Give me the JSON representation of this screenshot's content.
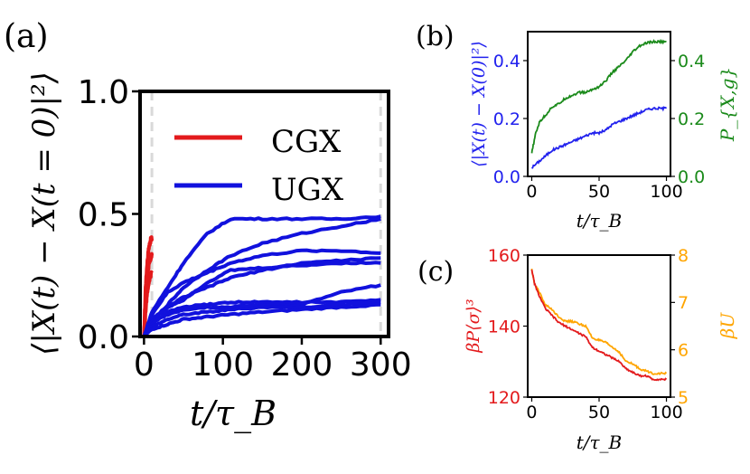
{
  "figure": {
    "panel_labels": {
      "a": "(a)",
      "b": "(b)",
      "c": "(c)"
    }
  },
  "colors": {
    "cgx": "#e31a1c",
    "ugx": "#1111dd",
    "b_left": "#2222ee",
    "b_right": "#1a8a1a",
    "c_left": "#e31a1c",
    "c_right": "#ffa500",
    "vline": "#d9d9d9"
  },
  "chart_data": [
    {
      "id": "a",
      "type": "line",
      "xlabel": "t/τ_B",
      "ylabel": "⟨|X(t) − X(t = 0)|²⟩",
      "xlim": [
        -5,
        310
      ],
      "ylim": [
        0,
        1.0
      ],
      "xticks": [
        0,
        100,
        200,
        300
      ],
      "xtick_labels": [
        "0",
        "100",
        "200",
        "300"
      ],
      "yticks": [
        0.0,
        0.5,
        1.0
      ],
      "ytick_labels": [
        "0.0",
        "0.5",
        "1.0"
      ],
      "vlines": [
        10,
        300
      ],
      "legend": {
        "position": "upper-left",
        "entries": [
          {
            "name": "CGX",
            "color": "#e31a1c"
          },
          {
            "name": "UGX",
            "color": "#1111dd"
          }
        ]
      },
      "series": [
        {
          "name": "CGX",
          "group": "CGX",
          "x": [
            0,
            2,
            4,
            6,
            8,
            10
          ],
          "y": [
            0.0,
            0.2,
            0.3,
            0.36,
            0.39,
            0.4
          ]
        },
        {
          "name": "CGX",
          "group": "CGX",
          "x": [
            0,
            2,
            4,
            6,
            8,
            10
          ],
          "y": [
            0.0,
            0.15,
            0.24,
            0.29,
            0.32,
            0.33
          ]
        },
        {
          "name": "CGX",
          "group": "CGX",
          "x": [
            0,
            2,
            4,
            6,
            8,
            10
          ],
          "y": [
            0.0,
            0.1,
            0.18,
            0.22,
            0.25,
            0.26
          ]
        },
        {
          "name": "UGX",
          "group": "UGX",
          "x": [
            0,
            10,
            30,
            50,
            80,
            110,
            150,
            200,
            250,
            300
          ],
          "y": [
            0.0,
            0.1,
            0.2,
            0.3,
            0.42,
            0.48,
            0.48,
            0.48,
            0.48,
            0.49
          ]
        },
        {
          "name": "UGX",
          "group": "UGX",
          "x": [
            0,
            10,
            30,
            50,
            80,
            110,
            150,
            200,
            250,
            300
          ],
          "y": [
            0.0,
            0.06,
            0.13,
            0.2,
            0.27,
            0.33,
            0.38,
            0.42,
            0.45,
            0.48
          ]
        },
        {
          "name": "UGX",
          "group": "UGX",
          "x": [
            0,
            10,
            30,
            50,
            80,
            110,
            150,
            200,
            250,
            300
          ],
          "y": [
            0.0,
            0.09,
            0.18,
            0.22,
            0.26,
            0.3,
            0.33,
            0.35,
            0.35,
            0.34
          ]
        },
        {
          "name": "UGX",
          "group": "UGX",
          "x": [
            0,
            10,
            30,
            50,
            80,
            110,
            150,
            200,
            250,
            300
          ],
          "y": [
            0.0,
            0.07,
            0.12,
            0.16,
            0.2,
            0.24,
            0.27,
            0.3,
            0.31,
            0.32
          ]
        },
        {
          "name": "UGX",
          "group": "UGX",
          "x": [
            0,
            10,
            30,
            50,
            80,
            110,
            150,
            200,
            250,
            300
          ],
          "y": [
            0.0,
            0.06,
            0.12,
            0.15,
            0.22,
            0.27,
            0.28,
            0.29,
            0.3,
            0.3
          ]
        },
        {
          "name": "UGX",
          "group": "UGX",
          "x": [
            0,
            10,
            30,
            50,
            80,
            110,
            150,
            200,
            250,
            300
          ],
          "y": [
            0.0,
            0.06,
            0.09,
            0.11,
            0.12,
            0.12,
            0.13,
            0.13,
            0.18,
            0.21
          ]
        },
        {
          "name": "UGX",
          "group": "UGX",
          "x": [
            0,
            10,
            30,
            50,
            80,
            110,
            150,
            200,
            250,
            300
          ],
          "y": [
            0.0,
            0.05,
            0.1,
            0.12,
            0.13,
            0.14,
            0.14,
            0.14,
            0.14,
            0.15
          ]
        },
        {
          "name": "UGX",
          "group": "UGX",
          "x": [
            0,
            10,
            30,
            50,
            80,
            110,
            150,
            200,
            250,
            300
          ],
          "y": [
            0.0,
            0.04,
            0.07,
            0.09,
            0.1,
            0.11,
            0.12,
            0.12,
            0.13,
            0.14
          ]
        },
        {
          "name": "UGX",
          "group": "UGX",
          "x": [
            0,
            10,
            30,
            50,
            80,
            110,
            150,
            200,
            250,
            300
          ],
          "y": [
            0.0,
            0.03,
            0.05,
            0.07,
            0.08,
            0.09,
            0.1,
            0.11,
            0.12,
            0.13
          ]
        }
      ]
    },
    {
      "id": "b",
      "type": "line",
      "xlabel": "t/τ_B",
      "ylabel_left": "⟨|X(t) − X(0)|²⟩",
      "ylabel_right": "P_{X,g}",
      "xlim": [
        -3,
        103
      ],
      "ylim_left": [
        0,
        0.5
      ],
      "ylim_right": [
        0,
        0.5
      ],
      "xticks": [
        0,
        50,
        100
      ],
      "xtick_labels": [
        "0",
        "50",
        "100"
      ],
      "yticks_left": [
        0.0,
        0.2,
        0.4
      ],
      "ytick_labels_left": [
        "0.0",
        "0.2",
        "0.4"
      ],
      "yticks_right": [
        0.0,
        0.2,
        0.4
      ],
      "ytick_labels_right": [
        "0.0",
        "0.2",
        "0.4"
      ],
      "series": [
        {
          "name": "MSD",
          "axis": "left",
          "x": [
            0,
            5,
            10,
            15,
            20,
            25,
            30,
            35,
            40,
            45,
            50,
            55,
            60,
            65,
            70,
            75,
            80,
            85,
            90,
            95,
            100
          ],
          "y": [
            0.03,
            0.05,
            0.07,
            0.09,
            0.1,
            0.11,
            0.12,
            0.13,
            0.14,
            0.15,
            0.15,
            0.16,
            0.18,
            0.19,
            0.2,
            0.21,
            0.22,
            0.23,
            0.235,
            0.235,
            0.235
          ]
        },
        {
          "name": "P_{X,g}",
          "axis": "right",
          "x": [
            0,
            3,
            6,
            10,
            15,
            20,
            25,
            30,
            35,
            40,
            45,
            50,
            55,
            60,
            65,
            70,
            75,
            80,
            85,
            90,
            95,
            100
          ],
          "y": [
            0.08,
            0.15,
            0.19,
            0.21,
            0.24,
            0.25,
            0.27,
            0.28,
            0.29,
            0.29,
            0.3,
            0.31,
            0.33,
            0.36,
            0.38,
            0.4,
            0.43,
            0.45,
            0.46,
            0.465,
            0.465,
            0.465
          ]
        }
      ]
    },
    {
      "id": "c",
      "type": "line",
      "xlabel": "t/τ_B",
      "ylabel_left": "βP⟨σ⟩³",
      "ylabel_right": "βU",
      "xlim": [
        -3,
        103
      ],
      "ylim_left": [
        120,
        160
      ],
      "ylim_right": [
        5,
        8
      ],
      "xticks": [
        0,
        50,
        100
      ],
      "xtick_labels": [
        "0",
        "50",
        "100"
      ],
      "yticks_left": [
        120,
        140,
        160
      ],
      "ytick_labels_left": [
        "120",
        "140",
        "160"
      ],
      "yticks_right": [
        5,
        6,
        7,
        8
      ],
      "ytick_labels_right": [
        "5",
        "6",
        "7",
        "8"
      ],
      "series": [
        {
          "name": "βP⟨σ⟩³",
          "axis": "left",
          "x": [
            0,
            2,
            5,
            10,
            15,
            20,
            25,
            30,
            35,
            40,
            45,
            50,
            55,
            60,
            65,
            70,
            75,
            80,
            85,
            90,
            95,
            100
          ],
          "y": [
            156,
            152,
            149,
            145,
            143,
            141,
            140,
            139,
            138,
            137,
            134,
            133,
            132,
            131,
            130,
            128,
            127,
            126,
            126,
            125,
            125,
            125
          ]
        },
        {
          "name": "βU",
          "axis": "right",
          "x": [
            0,
            2,
            5,
            10,
            15,
            20,
            25,
            30,
            35,
            40,
            45,
            50,
            55,
            60,
            65,
            70,
            75,
            80,
            85,
            90,
            95,
            100
          ],
          "y": [
            7.7,
            7.4,
            7.25,
            6.95,
            6.85,
            6.7,
            6.6,
            6.6,
            6.55,
            6.5,
            6.25,
            6.2,
            6.15,
            6.05,
            5.95,
            5.75,
            5.7,
            5.6,
            5.55,
            5.5,
            5.5,
            5.5
          ]
        }
      ]
    }
  ]
}
